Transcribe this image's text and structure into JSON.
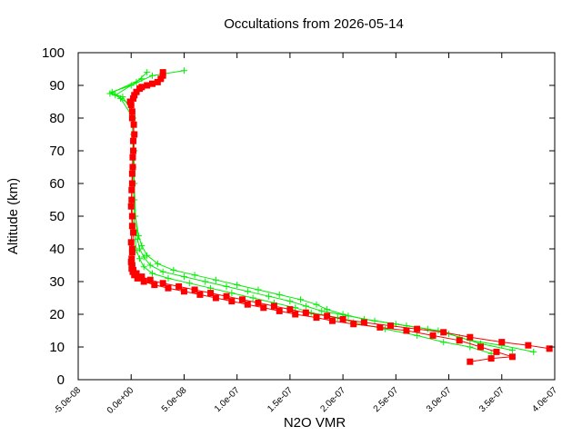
{
  "chart_data": {
    "type": "scatter",
    "title": "Occultations from 2026-05-14",
    "xlabel": "N2O VMR",
    "ylabel": "Altitude (km)",
    "xlim": [
      -5e-08,
      4e-07
    ],
    "ylim": [
      0,
      100
    ],
    "x_ticks": [
      -5e-08,
      0,
      5e-08,
      1e-07,
      1.5e-07,
      2e-07,
      2.5e-07,
      3e-07,
      3.5e-07,
      4e-07
    ],
    "x_tick_labels": [
      "-5.0e-08",
      "0.0e+00",
      "5.0e-08",
      "1.0e-07",
      "1.5e-07",
      "2.0e-07",
      "2.5e-07",
      "3.0e-07",
      "3.5e-07",
      "4.0e-07"
    ],
    "y_ticks": [
      0,
      10,
      20,
      30,
      40,
      50,
      60,
      70,
      80,
      90,
      100
    ],
    "y_tick_labels": [
      "0",
      "10",
      "20",
      "30",
      "40",
      "50",
      "60",
      "70",
      "80",
      "90",
      "100"
    ],
    "grid": false,
    "series": [
      {
        "color": "#00ee00",
        "marker": "plus",
        "profiles": [
          [
            [
              3.8e-07,
              8.5
            ],
            [
              3.5e-07,
              10.5
            ],
            [
              3.2e-07,
              12.0
            ],
            [
              3e-07,
              14.0
            ],
            [
              2.8e-07,
              15.5
            ],
            [
              2.5e-07,
              17.0
            ],
            [
              2.2e-07,
              18.5
            ],
            [
              2e-07,
              20.0
            ],
            [
              1.85e-07,
              21.5
            ],
            [
              1.75e-07,
              23.0
            ],
            [
              1.6e-07,
              24.5
            ],
            [
              1.4e-07,
              26.0
            ],
            [
              1.2e-07,
              27.5
            ],
            [
              1e-07,
              29.0
            ],
            [
              8e-08,
              30.5
            ],
            [
              6e-08,
              32.0
            ],
            [
              4e-08,
              33.5
            ],
            [
              2.5e-08,
              35.5
            ],
            [
              1.5e-08,
              38.0
            ],
            [
              1e-08,
              41.0
            ],
            [
              7e-09,
              44.0
            ],
            [
              4e-09,
              50.0
            ],
            [
              3e-09,
              60.0
            ],
            [
              3e-09,
              70.0
            ],
            [
              2e-09,
              80.0
            ],
            [
              -1e-08,
              86.0
            ],
            [
              -1.8e-08,
              88.0
            ],
            [
              0.0,
              90.0
            ],
            [
              2e-08,
              93.0
            ],
            [
              5e-08,
              94.5
            ]
          ],
          [
            [
              3.6e-07,
              9.0
            ],
            [
              3.3e-07,
              11.0
            ],
            [
              3.1e-07,
              13.0
            ],
            [
              2.9e-07,
              15.0
            ],
            [
              2.6e-07,
              16.5
            ],
            [
              2.3e-07,
              18.0
            ],
            [
              2.05e-07,
              19.5
            ],
            [
              1.8e-07,
              21.0
            ],
            [
              1.65e-07,
              22.5
            ],
            [
              1.5e-07,
              24.0
            ],
            [
              1.3e-07,
              25.5
            ],
            [
              1.1e-07,
              27.0
            ],
            [
              9e-08,
              28.5
            ],
            [
              7e-08,
              30.0
            ],
            [
              5e-08,
              31.5
            ],
            [
              3e-08,
              33.0
            ],
            [
              1.8e-08,
              35.0
            ],
            [
              1.2e-08,
              37.5
            ],
            [
              8e-09,
              40.0
            ],
            [
              6e-09,
              43.0
            ],
            [
              3e-09,
              55.0
            ],
            [
              2e-09,
              75.0
            ],
            [
              0.0,
              84.0
            ],
            [
              -1.5e-08,
              87.0
            ],
            [
              5e-09,
              91.0
            ],
            [
              1.5e-08,
              94.0
            ]
          ],
          [
            [
              3.4e-07,
              8.0
            ],
            [
              3.2e-07,
              10.0
            ],
            [
              2.95e-07,
              11.5
            ],
            [
              2.7e-07,
              13.5
            ],
            [
              2.4e-07,
              15.5
            ],
            [
              2.1e-07,
              17.5
            ],
            [
              1.95e-07,
              19.0
            ],
            [
              1.7e-07,
              20.5
            ],
            [
              1.55e-07,
              22.0
            ],
            [
              1.35e-07,
              23.5
            ],
            [
              1.15e-07,
              25.0
            ],
            [
              9.5e-08,
              26.5
            ],
            [
              7.5e-08,
              28.0
            ],
            [
              5.5e-08,
              29.5
            ],
            [
              3.5e-08,
              31.0
            ],
            [
              2e-08,
              32.5
            ],
            [
              1.2e-08,
              34.5
            ],
            [
              8e-09,
              37.0
            ],
            [
              5e-09,
              39.5
            ],
            [
              3e-09,
              45.0
            ],
            [
              2e-09,
              65.0
            ],
            [
              1e-09,
              82.0
            ],
            [
              -8e-09,
              86.5
            ],
            [
              -2e-08,
              87.5
            ],
            [
              1e-08,
              92.0
            ]
          ]
        ]
      },
      {
        "color": "#ff0000",
        "marker": "square",
        "profiles": [
          [
            [
              3.95e-07,
              9.5
            ],
            [
              3.75e-07,
              10.5
            ],
            [
              3.5e-07,
              11.5
            ],
            [
              3.2e-07,
              13.0
            ],
            [
              2.95e-07,
              14.5
            ],
            [
              2.7e-07,
              15.5
            ],
            [
              2.45e-07,
              16.5
            ],
            [
              2.2e-07,
              17.5
            ],
            [
              2e-07,
              18.5
            ],
            [
              1.85e-07,
              19.5
            ],
            [
              1.65e-07,
              20.5
            ],
            [
              1.5e-07,
              21.5
            ],
            [
              1.35e-07,
              22.5
            ],
            [
              1.2e-07,
              23.5
            ],
            [
              1.05e-07,
              24.5
            ],
            [
              9e-08,
              25.5
            ],
            [
              7.5e-08,
              26.5
            ],
            [
              6e-08,
              27.5
            ],
            [
              4.5e-08,
              28.5
            ],
            [
              3e-08,
              29.5
            ],
            [
              1.8e-08,
              30.5
            ],
            [
              1e-08,
              31.5
            ],
            [
              5e-09,
              32.5
            ],
            [
              2e-09,
              33.5
            ],
            [
              1e-09,
              35.0
            ],
            [
              5e-10,
              37.0
            ],
            [
              1e-09,
              40.0
            ],
            [
              2e-09,
              45.0
            ],
            [
              1e-09,
              50.0
            ],
            [
              5e-10,
              55.0
            ],
            [
              1e-09,
              60.0
            ],
            [
              1.5e-09,
              65.0
            ],
            [
              2e-09,
              70.0
            ],
            [
              3e-09,
              75.0
            ],
            [
              1e-09,
              80.0
            ],
            [
              0.0,
              84.0
            ],
            [
              2e-09,
              86.0
            ],
            [
              5e-09,
              88.0
            ],
            [
              1e-08,
              89.5
            ],
            [
              2e-08,
              90.5
            ],
            [
              2.8e-08,
              92.0
            ],
            [
              3e-08,
              94.0
            ]
          ],
          [
            [
              3.2e-07,
              5.5
            ],
            [
              3.4e-07,
              6.5
            ],
            [
              3.6e-07,
              7.0
            ],
            [
              3.45e-07,
              8.5
            ],
            [
              3.3e-07,
              10.0
            ],
            [
              3.1e-07,
              12.0
            ],
            [
              2.85e-07,
              13.5
            ],
            [
              2.6e-07,
              15.0
            ],
            [
              2.35e-07,
              16.0
            ],
            [
              2.1e-07,
              17.0
            ],
            [
              1.9e-07,
              18.0
            ],
            [
              1.75e-07,
              19.0
            ],
            [
              1.55e-07,
              20.0
            ],
            [
              1.4e-07,
              21.0
            ],
            [
              1.25e-07,
              22.0
            ],
            [
              1.1e-07,
              23.0
            ],
            [
              9.5e-08,
              24.0
            ],
            [
              8e-08,
              25.0
            ],
            [
              6.5e-08,
              26.0
            ],
            [
              5e-08,
              27.0
            ],
            [
              3.5e-08,
              28.0
            ],
            [
              2.2e-08,
              29.0
            ],
            [
              1.2e-08,
              30.0
            ],
            [
              6e-09,
              31.0
            ],
            [
              3e-09,
              32.0
            ],
            [
              1.5e-09,
              33.0
            ],
            [
              5e-10,
              34.0
            ],
            [
              0.0,
              36.0
            ],
            [
              1e-09,
              39.0
            ],
            [
              0.0,
              42.0
            ],
            [
              1e-09,
              47.0
            ],
            [
              0.0,
              53.0
            ],
            [
              5e-10,
              58.0
            ],
            [
              1e-09,
              63.0
            ],
            [
              1.5e-09,
              68.0
            ],
            [
              2e-09,
              73.0
            ],
            [
              2.5e-09,
              78.0
            ],
            [
              1e-09,
              82.0
            ],
            [
              -1e-09,
              85.0
            ],
            [
              3e-09,
              87.0
            ],
            [
              8e-09,
              89.0
            ],
            [
              1.5e-08,
              90.0
            ],
            [
              2.5e-08,
              91.0
            ],
            [
              3e-08,
              93.0
            ]
          ]
        ]
      }
    ]
  }
}
